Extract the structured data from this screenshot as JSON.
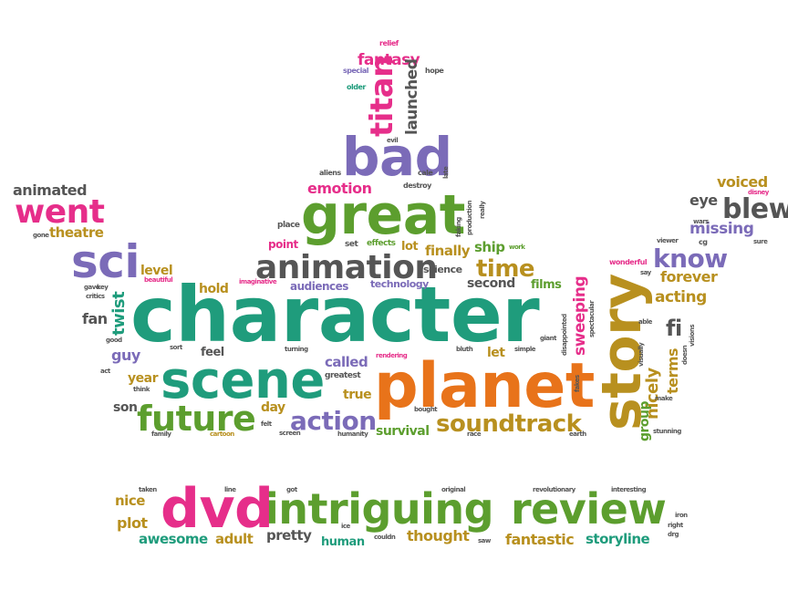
{
  "words": {
    "character": "character",
    "planet": "planet",
    "scene": "scene",
    "story": "story",
    "great": "great",
    "bad": "bad",
    "animation": "animation",
    "sci": "sci",
    "intriguing": "intriguing",
    "review": "review",
    "dvd": "dvd",
    "future": "future",
    "soundtrack": "soundtrack",
    "action": "action",
    "went": "went",
    "titan": "titan",
    "blew": "blew",
    "know": "know",
    "time": "time",
    "fantasy": "fantasy",
    "launched": "launched",
    "emotion": "emotion",
    "animated": "animated",
    "theatre": "theatre",
    "voiced": "voiced",
    "missing": "missing",
    "eye": "eye",
    "forever": "forever",
    "acting": "acting",
    "fi": "fi",
    "nicely": "nicely",
    "sweeping": "sweeping",
    "terms": "terms",
    "group": "group",
    "twist": "twist",
    "level": "level",
    "hold": "hold",
    "fan": "fan",
    "guy": "guy",
    "year": "year",
    "son": "son",
    "feel": "feel",
    "day": "day",
    "called": "called",
    "true": "true",
    "survival": "survival",
    "let": "let",
    "second": "second",
    "films": "films",
    "ship": "ship",
    "finally": "finally",
    "lot": "lot",
    "audiences": "audiences",
    "technology": "technology",
    "science": "science",
    "point": "point",
    "place": "place",
    "effects": "effects",
    "set": "set",
    "aliens": "aliens",
    "destroy": "destroy",
    "cale": "cale",
    "evil": "evil",
    "relief": "relief",
    "special": "special",
    "hope": "hope",
    "older": "older",
    "late": "late",
    "faking": "faking",
    "production": "production",
    "really": "really",
    "work": "work",
    "wonderful": "wonderful",
    "viewer": "viewer",
    "cg": "cg",
    "wars": "wars",
    "sure": "sure",
    "disney": "disney",
    "say": "say",
    "able": "able",
    "giant": "giant",
    "simple": "simple",
    "bluth": "bluth",
    "rendering": "rendering",
    "greatest": "greatest",
    "turning": "turning",
    "sort": "sort",
    "good": "good",
    "act": "act",
    "think": "think",
    "family": "family",
    "cartoon": "cartoon",
    "felt": "felt",
    "screen": "screen",
    "humanity": "humanity",
    "race": "race",
    "bought": "bought",
    "earth": "earth",
    "stunning": "stunning",
    "doesn": "doesn",
    "make": "make",
    "visually": "visually",
    "visions": "visions",
    "fakes": "fakes",
    "disappointed": "disappointed",
    "spectacular": "spectacular",
    "beautiful": "beautiful",
    "imaginative": "imaginative",
    "gave": "gave",
    "key": "key",
    "critics": "critics",
    "gone": "gone",
    "nice": "nice",
    "plot": "plot",
    "awesome": "awesome",
    "adult": "adult",
    "pretty": "pretty",
    "human": "human",
    "thought": "thought",
    "fantastic": "fantastic",
    "storyline": "storyline",
    "taken": "taken",
    "line": "line",
    "got": "got",
    "original": "original",
    "revolutionary": "revolutionary",
    "interesting": "interesting",
    "iron": "iron",
    "right": "right",
    "drg": "drg",
    "ice": "ice",
    "couldn": "couldn",
    "saw": "saw"
  }
}
